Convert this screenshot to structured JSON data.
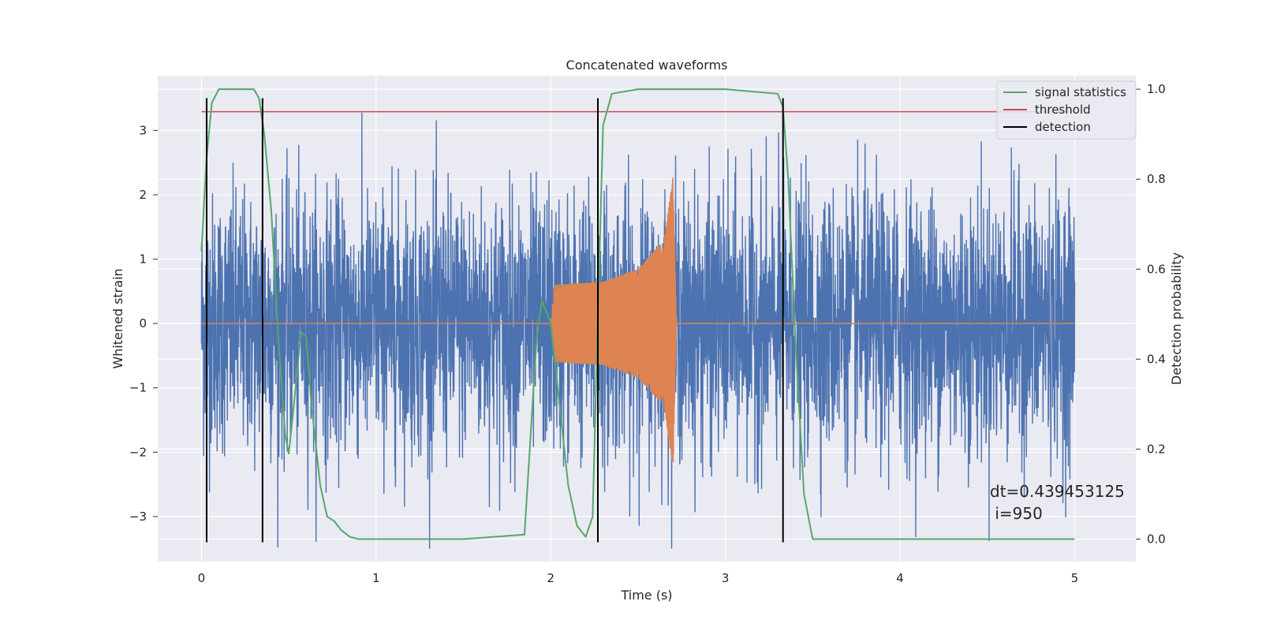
{
  "chart_data": {
    "type": "line",
    "title": "Concatenated waveforms",
    "xlabel": "Time (s)",
    "ylabel": "Whitened strain",
    "y2label": "Detection probability",
    "xlim": [
      -0.25,
      5.35
    ],
    "ylim": [
      -3.7,
      3.85
    ],
    "y2lim": [
      -0.05,
      1.03
    ],
    "x_ticks": [
      0,
      1,
      2,
      3,
      4,
      5
    ],
    "y_ticks": [
      -3,
      -2,
      -1,
      0,
      1,
      2,
      3
    ],
    "y2_ticks": [
      0.0,
      0.2,
      0.4,
      0.6,
      0.8,
      1.0
    ],
    "x_tick_labels": [
      "0",
      "1",
      "2",
      "3",
      "4",
      "5"
    ],
    "y_tick_labels": [
      "−3",
      "−2",
      "−1",
      "0",
      "1",
      "2",
      "3"
    ],
    "y2_tick_labels": [
      "0.0",
      "0.2",
      "0.4",
      "0.6",
      "0.8",
      "1.0"
    ],
    "grid": true,
    "legend_position": "top-right",
    "colors": {
      "strain": "#4c72b0",
      "injection": "#dd8452",
      "statistics": "#55a868",
      "threshold": "#c44e52",
      "detection": "#000000",
      "background": "#eaeaf2",
      "grid": "#ffffff"
    },
    "noise": {
      "x_range": [
        0,
        5
      ],
      "typical_abs": 1.0,
      "peak_abs": 3.5
    },
    "injection": {
      "x_range": [
        2.0,
        2.72
      ],
      "envelope": [
        {
          "x": 2.0,
          "amp": 0.0
        },
        {
          "x": 2.02,
          "amp": 0.6
        },
        {
          "x": 2.3,
          "amp": 0.65
        },
        {
          "x": 2.5,
          "amp": 0.85
        },
        {
          "x": 2.65,
          "amp": 1.3
        },
        {
          "x": 2.7,
          "amp": 2.3
        },
        {
          "x": 2.72,
          "amp": 0.0
        }
      ]
    },
    "series": [
      {
        "name": "signal statistics",
        "axis": "right",
        "x": [
          0.0,
          0.03,
          0.06,
          0.1,
          0.15,
          0.3,
          0.33,
          0.36,
          0.4,
          0.44,
          0.48,
          0.5,
          0.53,
          0.57,
          0.6,
          0.63,
          0.68,
          0.72,
          0.76,
          0.8,
          0.85,
          0.9,
          1.2,
          1.5,
          1.85,
          1.88,
          1.92,
          1.95,
          2.0,
          2.05,
          2.1,
          2.15,
          2.2,
          2.24,
          2.27,
          2.3,
          2.35,
          2.5,
          3.0,
          3.3,
          3.33,
          3.36,
          3.4,
          3.45,
          3.5,
          4.0,
          4.5,
          5.0
        ],
        "y": [
          0.64,
          0.85,
          0.97,
          1.0,
          1.0,
          1.0,
          0.98,
          0.9,
          0.73,
          0.45,
          0.23,
          0.19,
          0.3,
          0.46,
          0.45,
          0.3,
          0.12,
          0.05,
          0.04,
          0.02,
          0.005,
          0.0,
          0.0,
          0.0,
          0.01,
          0.2,
          0.45,
          0.53,
          0.48,
          0.3,
          0.12,
          0.03,
          0.005,
          0.05,
          0.5,
          0.92,
          0.99,
          1.0,
          1.0,
          0.99,
          0.96,
          0.8,
          0.45,
          0.1,
          0.0,
          0.0,
          0.0,
          0.0
        ]
      },
      {
        "name": "threshold",
        "axis": "right",
        "x": [
          0,
          5
        ],
        "y": [
          0.95,
          0.95
        ]
      },
      {
        "name": "detection",
        "axis": "left",
        "x": [
          0.03,
          0.35,
          2.27,
          3.33
        ],
        "y_range": [
          -3.4,
          3.5
        ]
      }
    ],
    "annotation": {
      "line1": "dt=0.439453125",
      "line2": " i=950"
    }
  }
}
